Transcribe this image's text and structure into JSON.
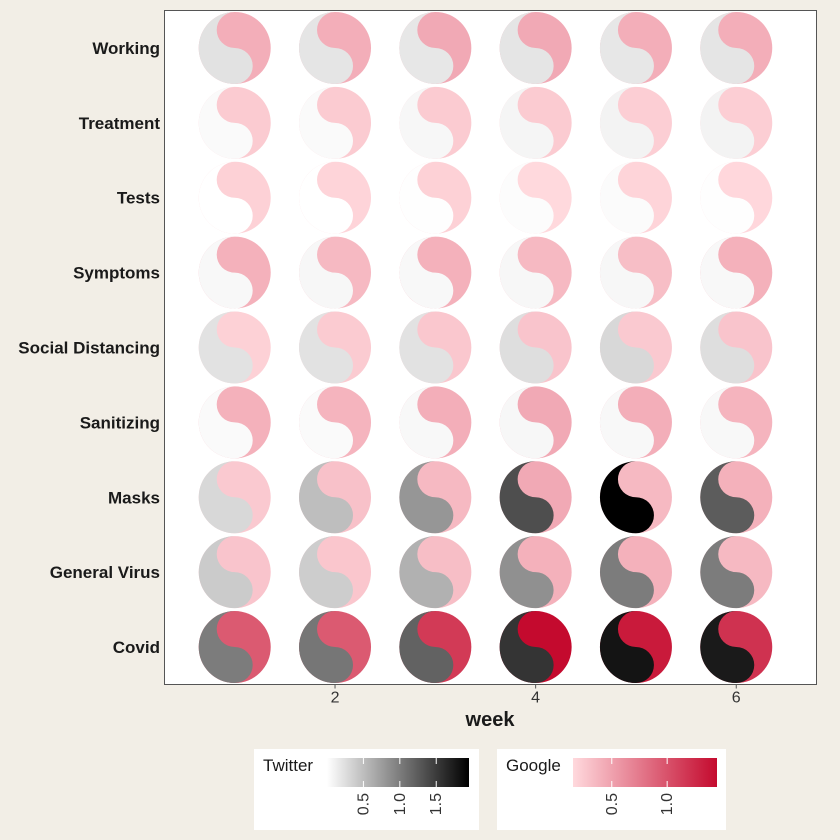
{
  "chart_data": {
    "type": "heatmap",
    "glyph": "yin-yang",
    "xlabel": "week",
    "x": [
      1,
      2,
      3,
      4,
      5,
      6
    ],
    "x_ticks": [
      2,
      4,
      6
    ],
    "xlim": [
      0.3,
      6.8
    ],
    "categories": [
      "Covid",
      "General Virus",
      "Masks",
      "Sanitizing",
      "Social Distancing",
      "Symptoms",
      "Tests",
      "Treatment",
      "Working"
    ],
    "series": [
      {
        "name": "Twitter",
        "color_range": [
          "#ffffff",
          "#000000"
        ],
        "domain": [
          0.0,
          1.95
        ],
        "values": {
          "Covid": [
            1.0,
            1.05,
            1.2,
            1.55,
            1.8,
            1.75
          ],
          "General Virus": [
            0.4,
            0.38,
            0.6,
            0.85,
            1.0,
            1.0
          ],
          "Masks": [
            0.3,
            0.5,
            0.8,
            1.35,
            1.95,
            1.25
          ],
          "Sanitizing": [
            0.04,
            0.04,
            0.05,
            0.06,
            0.05,
            0.05
          ],
          "Social Distancing": [
            0.22,
            0.22,
            0.22,
            0.25,
            0.3,
            0.25
          ],
          "Symptoms": [
            0.05,
            0.06,
            0.05,
            0.06,
            0.06,
            0.05
          ],
          "Tests": [
            0.0,
            0.0,
            0.01,
            0.02,
            0.03,
            0.01
          ],
          "Treatment": [
            0.04,
            0.04,
            0.06,
            0.08,
            0.09,
            0.09
          ],
          "Working": [
            0.22,
            0.2,
            0.18,
            0.2,
            0.18,
            0.2
          ]
        }
      },
      {
        "name": "Google",
        "color_range": [
          "#ffd9dd",
          "#c40a2e"
        ],
        "domain": [
          0.15,
          1.45
        ],
        "values": {
          "Covid": [
            0.95,
            0.95,
            1.15,
            1.45,
            1.35,
            1.2
          ],
          "General Virus": [
            0.28,
            0.27,
            0.32,
            0.4,
            0.4,
            0.35
          ],
          "Masks": [
            0.25,
            0.3,
            0.35,
            0.45,
            0.35,
            0.4
          ],
          "Sanitizing": [
            0.4,
            0.38,
            0.42,
            0.45,
            0.42,
            0.38
          ],
          "Social Distancing": [
            0.2,
            0.24,
            0.26,
            0.28,
            0.25,
            0.28
          ],
          "Symptoms": [
            0.4,
            0.35,
            0.4,
            0.35,
            0.32,
            0.4
          ],
          "Tests": [
            0.2,
            0.18,
            0.2,
            0.15,
            0.18,
            0.16
          ],
          "Treatment": [
            0.24,
            0.24,
            0.24,
            0.24,
            0.22,
            0.22
          ],
          "Working": [
            0.42,
            0.42,
            0.45,
            0.45,
            0.42,
            0.42
          ]
        }
      }
    ],
    "legends": [
      {
        "title": "Twitter",
        "ticks": [
          0.5,
          1.0,
          1.5
        ],
        "tick_labels": [
          "0.5",
          "1.0",
          "1.5"
        ]
      },
      {
        "title": "Google",
        "ticks": [
          0.5,
          1.0
        ],
        "tick_labels": [
          "0.5",
          "1.0"
        ]
      }
    ],
    "legend_position": "bottom",
    "grid": false
  }
}
